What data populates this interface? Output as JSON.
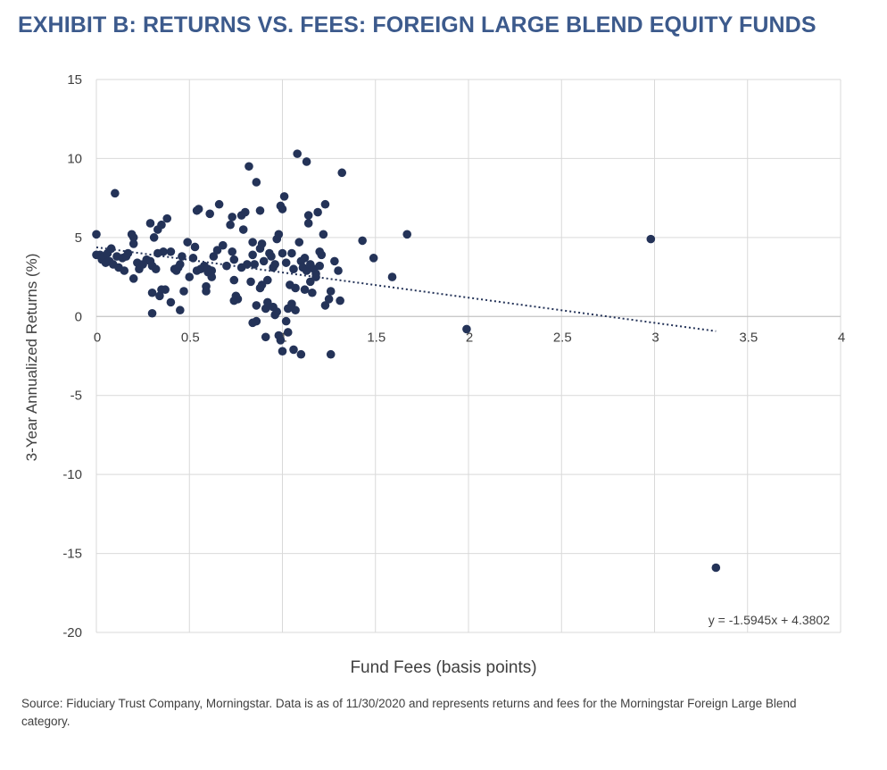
{
  "title": "EXHIBIT B: RETURNS VS. FEES:  FOREIGN LARGE BLEND EQUITY FUNDS",
  "source": "Source: Fiduciary Trust Company, Morningstar.  Data is as of 11/30/2020 and represents returns and fees for the Morningstar Foreign Large Blend category.",
  "colors": {
    "marker": "#243358",
    "grid": "#d9d9d9",
    "title": "#3c5a8c",
    "text": "#404040"
  },
  "chart_data": {
    "type": "scatter",
    "xlabel": "Fund Fees (basis points)",
    "ylabel": "3-Year Annualized Returns (%)",
    "xlim": [
      0,
      4
    ],
    "ylim": [
      -20,
      15
    ],
    "xticks": [
      "0",
      "0.5",
      "1",
      "1.5",
      "2",
      "2.5",
      "3",
      "3.5",
      "4"
    ],
    "yticks": [
      "15",
      "10",
      "5",
      "0",
      "-5",
      "-10",
      "-15",
      "-20"
    ],
    "grid": true,
    "trendline": {
      "slope": -1.5945,
      "intercept": 4.3802,
      "x_range": [
        0,
        3.33
      ],
      "label": "y = -1.5945x + 4.3802"
    },
    "points": [
      [
        0.0,
        5.2
      ],
      [
        0.0,
        3.9
      ],
      [
        0.02,
        3.9
      ],
      [
        0.03,
        3.6
      ],
      [
        0.04,
        3.8
      ],
      [
        0.05,
        3.4
      ],
      [
        0.06,
        4.0
      ],
      [
        0.07,
        3.5
      ],
      [
        0.08,
        4.3
      ],
      [
        0.09,
        3.3
      ],
      [
        0.1,
        7.8
      ],
      [
        0.11,
        3.8
      ],
      [
        0.12,
        3.1
      ],
      [
        0.14,
        3.7
      ],
      [
        0.15,
        2.9
      ],
      [
        0.16,
        3.8
      ],
      [
        0.17,
        4.0
      ],
      [
        0.19,
        5.2
      ],
      [
        0.2,
        5.0
      ],
      [
        0.2,
        4.6
      ],
      [
        0.2,
        2.4
      ],
      [
        0.22,
        3.4
      ],
      [
        0.23,
        3.0
      ],
      [
        0.25,
        3.3
      ],
      [
        0.27,
        3.6
      ],
      [
        0.29,
        5.9
      ],
      [
        0.29,
        3.5
      ],
      [
        0.3,
        3.2
      ],
      [
        0.3,
        1.5
      ],
      [
        0.3,
        0.2
      ],
      [
        0.31,
        5.0
      ],
      [
        0.32,
        3.0
      ],
      [
        0.33,
        5.5
      ],
      [
        0.34,
        1.3
      ],
      [
        0.35,
        5.8
      ],
      [
        0.35,
        1.7
      ],
      [
        0.36,
        4.1
      ],
      [
        0.37,
        1.7
      ],
      [
        0.38,
        6.2
      ],
      [
        0.4,
        4.1
      ],
      [
        0.4,
        0.9
      ],
      [
        0.42,
        3.0
      ],
      [
        0.43,
        2.9
      ],
      [
        0.44,
        3.1
      ],
      [
        0.45,
        0.4
      ],
      [
        0.46,
        3.8
      ],
      [
        0.47,
        1.6
      ],
      [
        0.49,
        4.7
      ],
      [
        0.5,
        2.5
      ],
      [
        0.52,
        3.7
      ],
      [
        0.53,
        4.4
      ],
      [
        0.54,
        6.7
      ],
      [
        0.54,
        2.9
      ],
      [
        0.55,
        6.8
      ],
      [
        0.56,
        3.0
      ],
      [
        0.58,
        3.2
      ],
      [
        0.59,
        1.9
      ],
      [
        0.59,
        1.6
      ],
      [
        0.6,
        2.8
      ],
      [
        0.61,
        6.5
      ],
      [
        0.62,
        2.5
      ],
      [
        0.62,
        2.9
      ],
      [
        0.63,
        3.8
      ],
      [
        0.65,
        4.2
      ],
      [
        0.66,
        7.1
      ],
      [
        0.68,
        4.5
      ],
      [
        0.7,
        3.2
      ],
      [
        0.72,
        5.8
      ],
      [
        0.73,
        4.1
      ],
      [
        0.73,
        6.3
      ],
      [
        0.74,
        3.6
      ],
      [
        0.74,
        2.3
      ],
      [
        0.75,
        1.3
      ],
      [
        0.76,
        1.1
      ],
      [
        0.78,
        6.4
      ],
      [
        0.79,
        5.5
      ],
      [
        0.8,
        6.6
      ],
      [
        0.81,
        3.3
      ],
      [
        0.82,
        9.5
      ],
      [
        0.83,
        2.2
      ],
      [
        0.84,
        4.7
      ],
      [
        0.84,
        3.9
      ],
      [
        0.85,
        3.3
      ],
      [
        0.86,
        8.5
      ],
      [
        0.86,
        0.7
      ],
      [
        0.86,
        -0.3
      ],
      [
        0.88,
        6.7
      ],
      [
        0.88,
        4.3
      ],
      [
        0.89,
        4.6
      ],
      [
        0.89,
        2.0
      ],
      [
        0.9,
        3.5
      ],
      [
        0.91,
        0.5
      ],
      [
        0.91,
        -1.3
      ],
      [
        0.92,
        2.3
      ],
      [
        0.92,
        0.9
      ],
      [
        0.93,
        4.0
      ],
      [
        0.94,
        3.8
      ],
      [
        0.95,
        3.1
      ],
      [
        0.96,
        3.3
      ],
      [
        0.96,
        0.1
      ],
      [
        0.97,
        4.9
      ],
      [
        0.98,
        5.2
      ],
      [
        0.98,
        -1.2
      ],
      [
        0.99,
        7.0
      ],
      [
        0.99,
        -1.5
      ],
      [
        1.0,
        6.8
      ],
      [
        1.0,
        4.0
      ],
      [
        1.0,
        -2.2
      ],
      [
        1.01,
        7.6
      ],
      [
        1.02,
        3.4
      ],
      [
        1.03,
        0.5
      ],
      [
        1.03,
        -1.0
      ],
      [
        1.04,
        2.0
      ],
      [
        1.05,
        4.0
      ],
      [
        1.06,
        3.0
      ],
      [
        1.06,
        -2.1
      ],
      [
        1.07,
        0.4
      ],
      [
        1.08,
        10.3
      ],
      [
        1.09,
        4.7
      ],
      [
        1.1,
        3.5
      ],
      [
        1.1,
        -2.4
      ],
      [
        1.11,
        3.1
      ],
      [
        1.12,
        3.7
      ],
      [
        1.13,
        9.8
      ],
      [
        1.13,
        2.9
      ],
      [
        1.14,
        5.9
      ],
      [
        1.14,
        6.4
      ],
      [
        1.15,
        3.3
      ],
      [
        1.16,
        1.5
      ],
      [
        1.17,
        3.0
      ],
      [
        1.18,
        2.5
      ],
      [
        1.19,
        6.6
      ],
      [
        1.2,
        4.1
      ],
      [
        1.21,
        3.9
      ],
      [
        1.22,
        5.2
      ],
      [
        1.23,
        7.1
      ],
      [
        1.23,
        0.7
      ],
      [
        1.25,
        1.1
      ],
      [
        1.26,
        1.6
      ],
      [
        1.26,
        -2.4
      ],
      [
        1.28,
        3.5
      ],
      [
        1.3,
        2.9
      ],
      [
        1.31,
        1.0
      ],
      [
        1.32,
        9.1
      ],
      [
        1.43,
        4.8
      ],
      [
        1.49,
        3.7
      ],
      [
        1.59,
        2.5
      ],
      [
        1.67,
        5.2
      ],
      [
        1.99,
        -0.8
      ],
      [
        2.98,
        4.9
      ],
      [
        3.33,
        -15.9
      ],
      [
        0.95,
        0.6
      ],
      [
        1.07,
        1.8
      ],
      [
        1.12,
        1.7
      ],
      [
        0.84,
        -0.4
      ],
      [
        0.97,
        0.3
      ],
      [
        1.02,
        -0.3
      ],
      [
        1.18,
        2.7
      ],
      [
        1.2,
        3.2
      ],
      [
        0.6,
        3.0
      ],
      [
        0.45,
        3.3
      ],
      [
        0.33,
        4.0
      ],
      [
        0.78,
        3.1
      ],
      [
        0.74,
        1.0
      ],
      [
        0.88,
        1.8
      ],
      [
        1.05,
        0.8
      ],
      [
        1.15,
        2.2
      ]
    ]
  }
}
